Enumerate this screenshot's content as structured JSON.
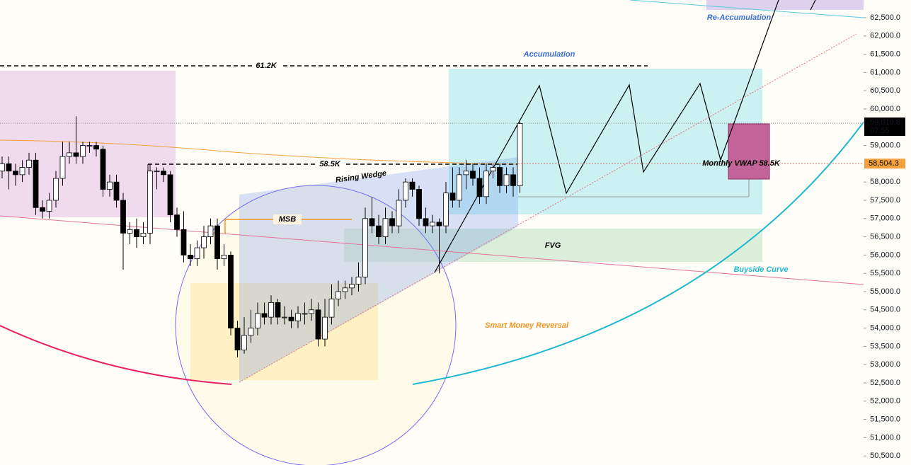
{
  "chart_data": {
    "type": "candlestick",
    "ylim": [
      50252,
      62984
    ],
    "yticks": [
      {
        "value": 50500,
        "label": "50,500.0"
      },
      {
        "value": 51000,
        "label": "51,000.0"
      },
      {
        "value": 51500,
        "label": "51,500.0"
      },
      {
        "value": 52000,
        "label": "52,000.0"
      },
      {
        "value": 52500,
        "label": "52,500.0"
      },
      {
        "value": 53000,
        "label": "53,000.0"
      },
      {
        "value": 53500,
        "label": "53,500.0"
      },
      {
        "value": 54000,
        "label": "54,000.0"
      },
      {
        "value": 54500,
        "label": "54,500.0"
      },
      {
        "value": 55000,
        "label": "55,000.0"
      },
      {
        "value": 55500,
        "label": "55,500.0"
      },
      {
        "value": 56000,
        "label": "56,000.0"
      },
      {
        "value": 56500,
        "label": "56,500.0"
      },
      {
        "value": 57000,
        "label": "57,000.0"
      },
      {
        "value": 57500,
        "label": "57,500.0"
      },
      {
        "value": 58000,
        "label": "58,000.0"
      },
      {
        "value": 59000,
        "label": "59,000.0"
      },
      {
        "value": 60000,
        "label": "60,000.0"
      },
      {
        "value": 60500,
        "label": "60,500.0"
      },
      {
        "value": 61000,
        "label": "61,000.0"
      },
      {
        "value": 61500,
        "label": "61,500.0"
      },
      {
        "value": 62000,
        "label": "62,000.0"
      },
      {
        "value": 62500,
        "label": "62,500.0"
      }
    ],
    "last_price": {
      "value": 59610.8,
      "label": "59,610.8"
    },
    "countdown": "07:55",
    "vwap_price": {
      "value": 58504.3,
      "label": "58,504.3"
    },
    "annotations": [
      "61.2K",
      "58.5K",
      "MSB",
      "Rising Wedge",
      "Accumulation",
      "Re-Accumulation",
      "FVG",
      "Buyside Curve",
      "Smart Money Reversal",
      "Monthly VWAP 58.5K"
    ],
    "up_color": "#ffffff",
    "down_color": "#000000",
    "open": [
      58300,
      58500,
      58300,
      58200,
      58400,
      58600,
      57300,
      57200,
      57500,
      58100,
      58700,
      58800,
      58700,
      59000,
      59000,
      58900,
      57800,
      58000,
      57500,
      56600,
      56700,
      56500,
      56600,
      58300,
      58300,
      58200,
      57100,
      56700,
      56000,
      55900,
      56200,
      56500,
      56800,
      55900,
      56000,
      54000,
      53400,
      53800,
      54000,
      54400,
      54300,
      54700,
      54300,
      54300,
      54200,
      54400,
      54400,
      54500,
      53700,
      54300,
      54800,
      55000,
      55100,
      55200,
      55400,
      57000,
      56800,
      56500,
      57000,
      56800,
      57500,
      58000,
      57800,
      57000,
      56800,
      56900,
      56800,
      57700,
      57500,
      58200,
      58300,
      58100,
      57600,
      58300,
      58400,
      57900,
      58200,
      57900
    ],
    "high": [
      58700,
      58700,
      58500,
      58600,
      58800,
      58800,
      57500,
      57700,
      58300,
      59100,
      59100,
      59800,
      59100,
      59100,
      59100,
      59000,
      58200,
      58200,
      57700,
      56900,
      57000,
      56900,
      58500,
      58400,
      58400,
      58300,
      57300,
      57200,
      56300,
      56400,
      56800,
      57000,
      57000,
      56300,
      56100,
      54200,
      54300,
      54500,
      54700,
      54700,
      54900,
      54800,
      54600,
      54500,
      54600,
      54700,
      54800,
      54700,
      54800,
      55200,
      55300,
      55300,
      55400,
      55800,
      57300,
      57600,
      57100,
      57300,
      57200,
      57800,
      58100,
      58100,
      57900,
      57300,
      57100,
      57000,
      58000,
      58400,
      58400,
      58600,
      58500,
      58400,
      58500,
      58500,
      58500,
      58400,
      58400,
      59650
    ],
    "low": [
      58100,
      57800,
      57900,
      58000,
      58200,
      57100,
      57000,
      57000,
      57300,
      57900,
      58500,
      58500,
      58500,
      58800,
      58700,
      57600,
      57600,
      57300,
      55600,
      56300,
      56200,
      56300,
      56300,
      57800,
      58000,
      56900,
      56500,
      55800,
      55700,
      55700,
      55900,
      56300,
      55600,
      55700,
      53800,
      53200,
      53300,
      53600,
      53800,
      54100,
      54100,
      54100,
      54100,
      54000,
      54000,
      54100,
      54200,
      53500,
      53500,
      54100,
      54600,
      54800,
      54900,
      55000,
      55200,
      56600,
      56300,
      56300,
      56600,
      56600,
      57300,
      57600,
      56800,
      56600,
      56600,
      55500,
      56600,
      57300,
      57300,
      57800,
      57900,
      57400,
      57400,
      58100,
      57700,
      57700,
      57600,
      57700
    ],
    "close": [
      58500,
      58300,
      58200,
      58400,
      58600,
      57300,
      57200,
      57500,
      58100,
      58700,
      58800,
      58700,
      59000,
      59000,
      58900,
      57800,
      58000,
      57500,
      56600,
      56700,
      56500,
      56600,
      58300,
      58300,
      58200,
      57100,
      56700,
      56000,
      55900,
      56200,
      56500,
      56800,
      55900,
      56000,
      54000,
      53400,
      53800,
      54000,
      54400,
      54300,
      54700,
      54300,
      54300,
      54200,
      54400,
      54400,
      54500,
      53700,
      54300,
      54800,
      55000,
      55100,
      55200,
      55400,
      57000,
      56800,
      56500,
      57000,
      56800,
      57500,
      58000,
      57800,
      57000,
      56800,
      56900,
      56800,
      57700,
      57500,
      58200,
      58300,
      58100,
      57600,
      58300,
      58400,
      57900,
      58200,
      57900,
      59600
    ]
  }
}
